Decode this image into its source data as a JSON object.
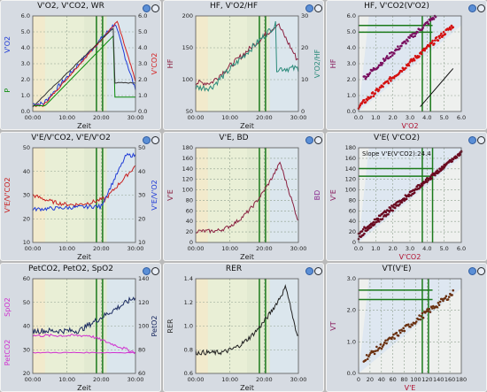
{
  "panels": [
    {
      "id": "p1",
      "title": "V'O2, V'CO2, WR",
      "type": "time",
      "xlabel": "Zeit",
      "xticks": [
        "00:00",
        "10:00",
        "20:00",
        "30:00"
      ],
      "yleft": {
        "labels": [
          "V'O2",
          "P"
        ],
        "colors": [
          "#1f3bd6",
          "#0a8a0a"
        ],
        "ticks": [
          "0.0",
          "1.0",
          "2.0",
          "3.0",
          "4.0",
          "5.0",
          "6.0"
        ]
      },
      "yright": {
        "label": "V'CO2",
        "color": "#d42020",
        "ticks": [
          "0.0",
          "1.0",
          "2.0",
          "3.0",
          "4.0",
          "5.0",
          "6.0"
        ]
      },
      "vlines": [
        0.62,
        0.68
      ],
      "vcolor": "#1a7a1a"
    },
    {
      "id": "p2",
      "title": "HF, V'O2/HF",
      "type": "time",
      "xlabel": "Zeit",
      "xticks": [
        "00:00",
        "10:00",
        "20:00",
        "30:00"
      ],
      "yleft": {
        "labels": [
          "HF"
        ],
        "colors": [
          "#8a2040"
        ],
        "ticks": [
          "50",
          "100",
          "150",
          "200"
        ]
      },
      "yright": {
        "label": "V'O2/HF",
        "color": "#2a8a7a",
        "ticks": [
          "0",
          "10",
          "20",
          "30"
        ]
      },
      "vlines": [
        0.62,
        0.68
      ],
      "vcolor": "#1a7a1a"
    },
    {
      "id": "p3",
      "title": "HF, V'CO2(V'O2)",
      "type": "xy",
      "xlabel": "V'O2",
      "xticks": [
        "0.0",
        "1.0",
        "2.0",
        "3.0",
        "4.0",
        "5.0",
        "6.0"
      ],
      "yleft": {
        "labels": [
          "HF"
        ],
        "colors": [
          "#8a2060"
        ],
        "ticks": [
          "0.0",
          "1.0",
          "2.0",
          "3.0",
          "4.0",
          "5.0",
          "6.0"
        ]
      },
      "yright": {
        "label": "",
        "color": "#333",
        "ticks": []
      },
      "vlines": [
        0.62,
        0.7
      ],
      "vcolor": "#1a7a1a",
      "hlines": [
        0.83,
        0.9
      ],
      "hcolor": "#1a7a1a"
    },
    {
      "id": "p4",
      "title": "V'E/V'CO2, V'E/V'O2",
      "type": "time",
      "xlabel": "Zeit",
      "xticks": [
        "00:00",
        "10:00",
        "20:00",
        "30:00"
      ],
      "yleft": {
        "labels": [
          "V'E/V'CO2"
        ],
        "colors": [
          "#c82020"
        ],
        "ticks": [
          "10",
          "20",
          "30",
          "40",
          "50"
        ]
      },
      "yright": {
        "label": "V'E/V'O2",
        "color": "#1f3bd6",
        "ticks": [
          "10",
          "20",
          "30",
          "40",
          "50"
        ]
      },
      "vlines": [
        0.62,
        0.68
      ],
      "vcolor": "#1a7a1a"
    },
    {
      "id": "p5",
      "title": "V'E, BD",
      "type": "time",
      "xlabel": "Zeit",
      "xticks": [
        "00:00",
        "10:00",
        "20:00",
        "30:00"
      ],
      "yleft": {
        "labels": [
          "V'E"
        ],
        "colors": [
          "#8a2040"
        ],
        "ticks": [
          "0",
          "20",
          "40",
          "60",
          "80",
          "100",
          "120",
          "140",
          "160",
          "180"
        ]
      },
      "yright": {
        "label": "BD",
        "color": "#8a2a90",
        "ticks": []
      },
      "vlines": [
        0.62,
        0.68
      ],
      "vcolor": "#1a7a1a"
    },
    {
      "id": "p6",
      "title": "V'E( V'CO2)",
      "type": "xy",
      "xlabel": "V'CO2",
      "xticks": [
        "0.0",
        "1.0",
        "2.0",
        "3.0",
        "4.0",
        "5.0",
        "6.0"
      ],
      "yleft": {
        "labels": [
          "V'E"
        ],
        "colors": [
          "#8a2060"
        ],
        "ticks": [
          "0",
          "20",
          "40",
          "60",
          "80",
          "100",
          "120",
          "140",
          "160",
          "180"
        ]
      },
      "yright": {
        "label": "",
        "color": "#333",
        "ticks": []
      },
      "annotation": "Slope V'E(V'CO2):24.4",
      "vlines": [
        0.62,
        0.72
      ],
      "vcolor": "#1a7a1a",
      "hlines": [
        0.7,
        0.78
      ],
      "hcolor": "#1a7a1a"
    },
    {
      "id": "p7",
      "title": "PetCO2, PetO2, SpO2",
      "type": "time",
      "xlabel": "Zeit",
      "xticks": [
        "00:00",
        "10:00",
        "20:00",
        "30:00"
      ],
      "yleft": {
        "labels": [
          "SpO2",
          "PetCO2"
        ],
        "colors": [
          "#d030d0",
          "#d030d0"
        ],
        "ticks": [
          "20",
          "30",
          "40",
          "50",
          "60"
        ]
      },
      "yright": {
        "label": "PetO2",
        "color": "#1a2a60",
        "ticks": [
          "60",
          "80",
          "100",
          "120",
          "140"
        ]
      },
      "vlines": [
        0.62,
        0.68
      ],
      "vcolor": "#1a7a1a"
    },
    {
      "id": "p8",
      "title": "RER",
      "type": "time",
      "xlabel": "Zeit",
      "xticks": [
        "00:00",
        "10:00",
        "20:00",
        "30:00"
      ],
      "yleft": {
        "labels": [
          "RER"
        ],
        "colors": [
          "#333333"
        ],
        "ticks": [
          "0.6",
          "0.8",
          "1.0",
          "1.2",
          "1.4"
        ]
      },
      "yright": {
        "label": "",
        "color": "#333",
        "ticks": []
      },
      "vlines": [
        0.62,
        0.68
      ],
      "vcolor": "#1a7a1a"
    },
    {
      "id": "p9",
      "title": "VT(V'E)",
      "type": "xy",
      "xlabel": "V'E",
      "xticks": [
        "0",
        "20",
        "40",
        "60",
        "80",
        "100",
        "120",
        "140",
        "160",
        "180"
      ],
      "yleft": {
        "labels": [
          "VT"
        ],
        "colors": [
          "#8a2060"
        ],
        "ticks": [
          "0.0",
          "1.0",
          "2.0",
          "3.0"
        ]
      },
      "yright": {
        "label": "",
        "color": "#333",
        "ticks": []
      },
      "vlines": [
        0.62,
        0.68
      ],
      "vcolor": "#1a7a1a",
      "hlines": [
        0.78,
        0.88
      ],
      "hcolor": "#1a7a1a"
    }
  ],
  "buttons": {
    "expand": "expand-icon",
    "collapse": "collapse-icon"
  }
}
